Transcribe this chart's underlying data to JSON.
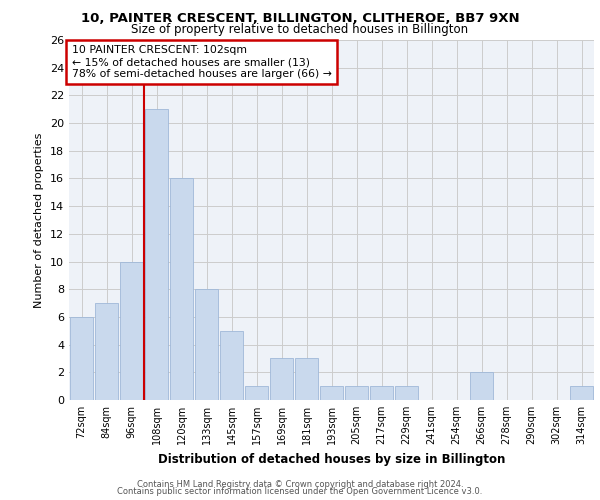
{
  "title1": "10, PAINTER CRESCENT, BILLINGTON, CLITHEROE, BB7 9XN",
  "title2": "Size of property relative to detached houses in Billington",
  "xlabel": "Distribution of detached houses by size in Billington",
  "ylabel": "Number of detached properties",
  "categories": [
    "72sqm",
    "84sqm",
    "96sqm",
    "108sqm",
    "120sqm",
    "133sqm",
    "145sqm",
    "157sqm",
    "169sqm",
    "181sqm",
    "193sqm",
    "205sqm",
    "217sqm",
    "229sqm",
    "241sqm",
    "254sqm",
    "266sqm",
    "278sqm",
    "290sqm",
    "302sqm",
    "314sqm"
  ],
  "values": [
    6,
    7,
    10,
    21,
    16,
    8,
    5,
    1,
    3,
    3,
    1,
    1,
    1,
    1,
    0,
    0,
    2,
    0,
    0,
    0,
    1
  ],
  "bar_color": "#c9d9ed",
  "bar_edgecolor": "#a0b8d8",
  "annotation_text1": "10 PAINTER CRESCENT: 102sqm",
  "annotation_text2": "← 15% of detached houses are smaller (13)",
  "annotation_text3": "78% of semi-detached houses are larger (66) →",
  "annotation_box_color": "#ffffff",
  "annotation_border_color": "#cc0000",
  "red_line_color": "#cc0000",
  "ylim": [
    0,
    26
  ],
  "yticks": [
    0,
    2,
    4,
    6,
    8,
    10,
    12,
    14,
    16,
    18,
    20,
    22,
    24,
    26
  ],
  "footer1": "Contains HM Land Registry data © Crown copyright and database right 2024.",
  "footer2": "Contains public sector information licensed under the Open Government Licence v3.0.",
  "grid_color": "#cccccc",
  "bg_color": "#eef2f8"
}
